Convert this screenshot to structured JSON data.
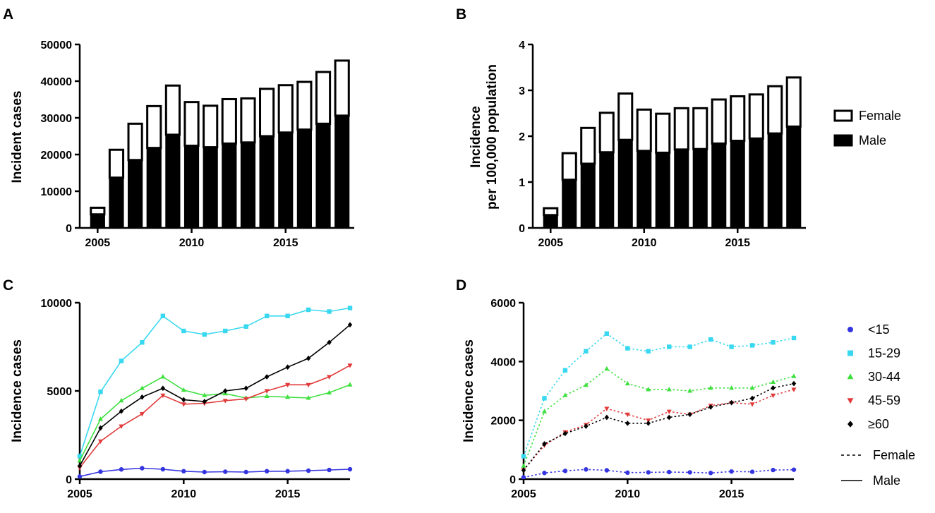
{
  "chart_data": [
    {
      "panel": "A",
      "type": "bar",
      "stacked": true,
      "xlabel": "",
      "ylabel": "Incident cases",
      "ylim": [
        0,
        50000
      ],
      "yticks": [
        0,
        10000,
        20000,
        30000,
        40000,
        50000
      ],
      "ytick_labels": [
        "0",
        "10000",
        "20000",
        "30000",
        "40000",
        "50000"
      ],
      "xlim": [
        2005,
        2018
      ],
      "xticks": [
        2005,
        2010,
        2015
      ],
      "xtick_labels": [
        "2005",
        "2010",
        "2015"
      ],
      "x": [
        2005,
        2006,
        2007,
        2008,
        2009,
        2010,
        2011,
        2012,
        2013,
        2014,
        2015,
        2016,
        2017,
        2018
      ],
      "series": [
        {
          "name": "Male",
          "style": "filled",
          "values": [
            3700,
            13700,
            18500,
            21800,
            25400,
            22400,
            22000,
            23000,
            23300,
            25000,
            26000,
            26800,
            28400,
            30600
          ]
        },
        {
          "name": "Female",
          "style": "open",
          "values": [
            1800,
            7600,
            9900,
            11400,
            13400,
            11900,
            11300,
            12100,
            12000,
            12900,
            12900,
            13000,
            14100,
            15000
          ]
        }
      ]
    },
    {
      "panel": "B",
      "type": "bar",
      "stacked": true,
      "xlabel": "",
      "ylabel_line1": "Incidence",
      "ylabel_line2": "per 100,000 population",
      "ylim": [
        0,
        4
      ],
      "yticks": [
        0,
        1,
        2,
        3,
        4
      ],
      "ytick_labels": [
        "0",
        "1",
        "2",
        "3",
        "4"
      ],
      "xlim": [
        2005,
        2018
      ],
      "xticks": [
        2005,
        2010,
        2015
      ],
      "xtick_labels": [
        "2005",
        "2010",
        "2015"
      ],
      "x": [
        2005,
        2006,
        2007,
        2008,
        2009,
        2010,
        2011,
        2012,
        2013,
        2014,
        2015,
        2016,
        2017,
        2018
      ],
      "series": [
        {
          "name": "Male",
          "style": "filled",
          "values": [
            0.28,
            1.05,
            1.4,
            1.65,
            1.92,
            1.68,
            1.64,
            1.71,
            1.72,
            1.84,
            1.9,
            1.95,
            2.06,
            2.21
          ]
        },
        {
          "name": "Female",
          "style": "open",
          "values": [
            0.15,
            0.58,
            0.78,
            0.86,
            1.01,
            0.9,
            0.85,
            0.9,
            0.89,
            0.96,
            0.97,
            0.96,
            1.03,
            1.07
          ]
        }
      ],
      "legend": [
        {
          "name": "Female",
          "style": "open"
        },
        {
          "name": "Male",
          "style": "filled"
        }
      ]
    },
    {
      "panel": "C",
      "type": "line",
      "xlabel": "",
      "ylabel": "Incidence cases",
      "ylim": [
        0,
        10000
      ],
      "yticks": [
        0,
        5000,
        10000
      ],
      "ytick_labels": [
        "0",
        "5000",
        "10000"
      ],
      "xlim": [
        2005,
        2018
      ],
      "xticks": [
        2005,
        2010,
        2015
      ],
      "xtick_labels": [
        "2005",
        "2010",
        "2015"
      ],
      "x": [
        2005,
        2006,
        2007,
        2008,
        2009,
        2010,
        2011,
        2012,
        2013,
        2014,
        2015,
        2016,
        2017,
        2018
      ],
      "series": [
        {
          "name": "<15",
          "dash": "solid",
          "values": [
            150,
            420,
            550,
            620,
            560,
            450,
            400,
            420,
            400,
            450,
            450,
            480,
            520,
            560
          ]
        },
        {
          "name": "15-29",
          "dash": "solid",
          "values": [
            1300,
            4950,
            6700,
            7750,
            9250,
            8400,
            8200,
            8400,
            8650,
            9250,
            9250,
            9600,
            9500,
            9700
          ]
        },
        {
          "name": "30-44",
          "dash": "solid",
          "values": [
            1050,
            3400,
            4450,
            5150,
            5800,
            5050,
            4750,
            4850,
            4600,
            4700,
            4650,
            4600,
            4900,
            5350
          ]
        },
        {
          "name": "45-59",
          "dash": "solid",
          "values": [
            650,
            2150,
            3000,
            3700,
            4750,
            4250,
            4300,
            4450,
            4550,
            5000,
            5350,
            5350,
            5800,
            6450
          ]
        },
        {
          "name": "≥60",
          "dash": "solid",
          "values": [
            750,
            2900,
            3850,
            4650,
            5150,
            4500,
            4400,
            5000,
            5150,
            5800,
            6350,
            6850,
            7750,
            8750
          ]
        }
      ]
    },
    {
      "panel": "D",
      "type": "line",
      "xlabel": "",
      "ylabel": "Incidence cases",
      "ylim": [
        0,
        6000
      ],
      "yticks": [
        0,
        2000,
        4000,
        6000
      ],
      "ytick_labels": [
        "0",
        "2000",
        "4000",
        "6000"
      ],
      "xlim": [
        2005,
        2018
      ],
      "xticks": [
        2005,
        2010,
        2015
      ],
      "xtick_labels": [
        "2005",
        "2010",
        "2015"
      ],
      "x": [
        2005,
        2006,
        2007,
        2008,
        2009,
        2010,
        2011,
        2012,
        2013,
        2014,
        2015,
        2016,
        2017,
        2018
      ],
      "series": [
        {
          "name": "<15",
          "dash": "dashed",
          "values": [
            60,
            210,
            280,
            330,
            300,
            220,
            230,
            240,
            230,
            210,
            260,
            250,
            310,
            320
          ]
        },
        {
          "name": "15-29",
          "dash": "dashed",
          "values": [
            780,
            2750,
            3700,
            4350,
            4950,
            4450,
            4350,
            4500,
            4500,
            4750,
            4500,
            4550,
            4650,
            4800
          ]
        },
        {
          "name": "30-44",
          "dash": "dashed",
          "values": [
            450,
            2300,
            2850,
            3200,
            3750,
            3250,
            3050,
            3050,
            3000,
            3100,
            3100,
            3100,
            3300,
            3500
          ]
        },
        {
          "name": "45-59",
          "dash": "dashed",
          "values": [
            310,
            1150,
            1600,
            1850,
            2400,
            2200,
            2000,
            2300,
            2200,
            2500,
            2600,
            2550,
            2850,
            3050
          ]
        },
        {
          "name": "≥60",
          "dash": "dashed",
          "values": [
            300,
            1200,
            1550,
            1800,
            2100,
            1900,
            1900,
            2100,
            2200,
            2450,
            2600,
            2750,
            3100,
            3250
          ]
        }
      ],
      "legend": [
        {
          "name": "<15",
          "label": "<15",
          "color": "#3535e0",
          "marker": "circle"
        },
        {
          "name": "15-29",
          "label": "15-29",
          "color": "#37d8f0",
          "marker": "square"
        },
        {
          "name": "30-44",
          "label": "30-44",
          "color": "#3ee03e",
          "marker": "triangle-up"
        },
        {
          "name": "45-59",
          "label": "45-59",
          "color": "#e23a3a",
          "marker": "triangle-down"
        },
        {
          "name": "≥60",
          "label": "≥60",
          "color": "#000000",
          "marker": "diamond"
        }
      ],
      "line_legend": [
        {
          "label": "Female",
          "dash": "dashed"
        },
        {
          "label": "Male",
          "dash": "solid"
        }
      ]
    }
  ],
  "series_styles": {
    "<15": {
      "color": "#3535e0",
      "marker": "circle"
    },
    "15-29": {
      "color": "#37d8f0",
      "marker": "square"
    },
    "30-44": {
      "color": "#3ee03e",
      "marker": "triangle-up"
    },
    "45-59": {
      "color": "#e23a3a",
      "marker": "triangle-down"
    },
    "≥60": {
      "color": "#000000",
      "marker": "diamond"
    }
  },
  "bar_colors": {
    "filled": "#000000",
    "open": "#ffffff",
    "stroke": "#000000"
  },
  "panel_letters": [
    "A",
    "B",
    "C",
    "D"
  ]
}
